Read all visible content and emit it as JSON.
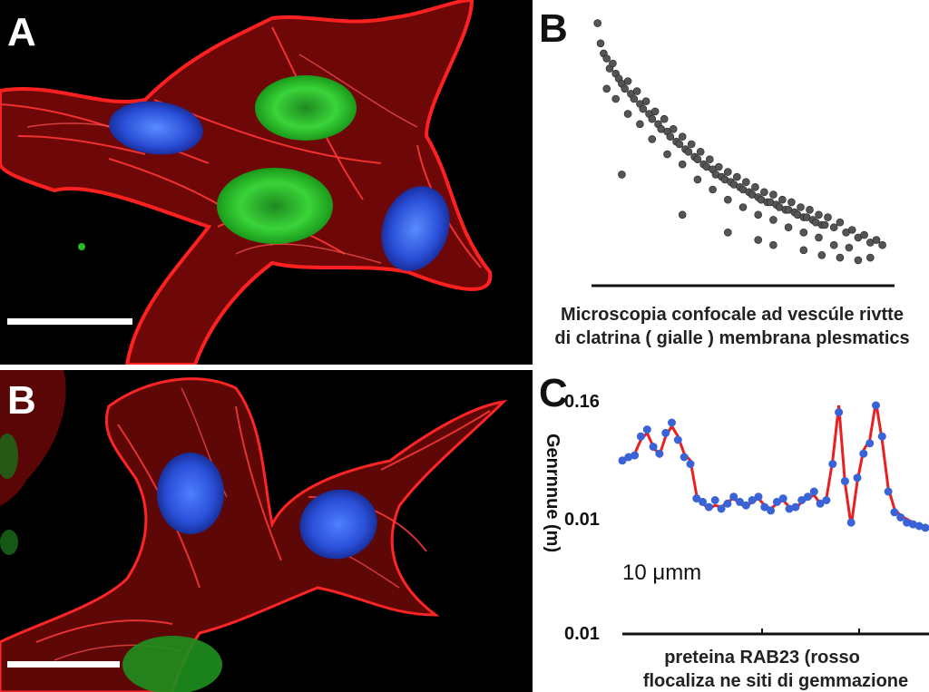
{
  "figure": {
    "panel_a": {
      "letter": "A"
    },
    "panel_b_micro": {
      "letter": "B"
    },
    "panel_b_scatter": {
      "letter": "B",
      "caption_line1": "Microscopia confocale ad vescúle rivtte",
      "caption_line2": "di clatrina ( gialle )  membrana plesmatics"
    },
    "panel_c": {
      "letter": "C",
      "ylabel": "Genrnnue (m)",
      "ytick_top": "0.16",
      "ytick_mid": "0.01",
      "ytick_bottom": "0.01",
      "note": "10 μmm",
      "caption_line1": "preteina RAB23 (rosso",
      "caption_line2": "flocaliza ne siti di gemmazione"
    }
  },
  "colors": {
    "actin": "#e01010",
    "nucleus": "#2a4fd8",
    "gfp": "#20c020",
    "scatter": "#555555",
    "line": "#e82020",
    "dots": "#3a63d8"
  },
  "chart_data": [
    {
      "type": "scatter",
      "panel": "B",
      "title": "",
      "xlabel": "",
      "ylabel": "",
      "trend": "decreasing",
      "points": [
        [
          0.02,
          0.98
        ],
        [
          0.03,
          0.9
        ],
        [
          0.04,
          0.86
        ],
        [
          0.05,
          0.84
        ],
        [
          0.06,
          0.8
        ],
        [
          0.07,
          0.82
        ],
        [
          0.08,
          0.78
        ],
        [
          0.09,
          0.76
        ],
        [
          0.1,
          0.74
        ],
        [
          0.11,
          0.72
        ],
        [
          0.12,
          0.75
        ],
        [
          0.13,
          0.7
        ],
        [
          0.14,
          0.68
        ],
        [
          0.15,
          0.71
        ],
        [
          0.16,
          0.66
        ],
        [
          0.17,
          0.64
        ],
        [
          0.18,
          0.67
        ],
        [
          0.19,
          0.62
        ],
        [
          0.2,
          0.6
        ],
        [
          0.21,
          0.63
        ],
        [
          0.22,
          0.58
        ],
        [
          0.23,
          0.56
        ],
        [
          0.24,
          0.6
        ],
        [
          0.25,
          0.55
        ],
        [
          0.26,
          0.53
        ],
        [
          0.27,
          0.56
        ],
        [
          0.28,
          0.51
        ],
        [
          0.29,
          0.5
        ],
        [
          0.3,
          0.53
        ],
        [
          0.31,
          0.48
        ],
        [
          0.32,
          0.47
        ],
        [
          0.33,
          0.5
        ],
        [
          0.34,
          0.45
        ],
        [
          0.35,
          0.44
        ],
        [
          0.36,
          0.47
        ],
        [
          0.37,
          0.42
        ],
        [
          0.38,
          0.41
        ],
        [
          0.39,
          0.44
        ],
        [
          0.4,
          0.4
        ],
        [
          0.41,
          0.38
        ],
        [
          0.42,
          0.41
        ],
        [
          0.43,
          0.37
        ],
        [
          0.44,
          0.36
        ],
        [
          0.45,
          0.39
        ],
        [
          0.46,
          0.35
        ],
        [
          0.47,
          0.34
        ],
        [
          0.48,
          0.37
        ],
        [
          0.49,
          0.33
        ],
        [
          0.5,
          0.32
        ],
        [
          0.51,
          0.35
        ],
        [
          0.52,
          0.31
        ],
        [
          0.53,
          0.3
        ],
        [
          0.54,
          0.33
        ],
        [
          0.55,
          0.29
        ],
        [
          0.56,
          0.28
        ],
        [
          0.57,
          0.31
        ],
        [
          0.58,
          0.27
        ],
        [
          0.59,
          0.27
        ],
        [
          0.6,
          0.3
        ],
        [
          0.61,
          0.26
        ],
        [
          0.62,
          0.25
        ],
        [
          0.63,
          0.28
        ],
        [
          0.64,
          0.24
        ],
        [
          0.65,
          0.24
        ],
        [
          0.66,
          0.27
        ],
        [
          0.67,
          0.23
        ],
        [
          0.68,
          0.22
        ],
        [
          0.69,
          0.25
        ],
        [
          0.7,
          0.21
        ],
        [
          0.71,
          0.21
        ],
        [
          0.72,
          0.24
        ],
        [
          0.73,
          0.2
        ],
        [
          0.74,
          0.19
        ],
        [
          0.75,
          0.22
        ],
        [
          0.76,
          0.18
        ],
        [
          0.77,
          0.18
        ],
        [
          0.78,
          0.21
        ],
        [
          0.8,
          0.17
        ],
        [
          0.82,
          0.19
        ],
        [
          0.84,
          0.15
        ],
        [
          0.86,
          0.16
        ],
        [
          0.88,
          0.13
        ],
        [
          0.9,
          0.14
        ],
        [
          0.92,
          0.11
        ],
        [
          0.94,
          0.12
        ],
        [
          0.96,
          0.1
        ],
        [
          0.05,
          0.72
        ],
        [
          0.08,
          0.68
        ],
        [
          0.12,
          0.62
        ],
        [
          0.16,
          0.58
        ],
        [
          0.2,
          0.52
        ],
        [
          0.25,
          0.46
        ],
        [
          0.3,
          0.42
        ],
        [
          0.35,
          0.36
        ],
        [
          0.4,
          0.32
        ],
        [
          0.45,
          0.28
        ],
        [
          0.5,
          0.25
        ],
        [
          0.55,
          0.22
        ],
        [
          0.6,
          0.2
        ],
        [
          0.65,
          0.17
        ],
        [
          0.7,
          0.15
        ],
        [
          0.75,
          0.13
        ],
        [
          0.8,
          0.1
        ],
        [
          0.85,
          0.09
        ],
        [
          0.1,
          0.38
        ],
        [
          0.3,
          0.22
        ],
        [
          0.45,
          0.15
        ],
        [
          0.55,
          0.12
        ],
        [
          0.6,
          0.1
        ],
        [
          0.7,
          0.08
        ],
        [
          0.76,
          0.06
        ],
        [
          0.82,
          0.05
        ],
        [
          0.88,
          0.04
        ],
        [
          0.92,
          0.05
        ]
      ]
    },
    {
      "type": "line",
      "panel": "C",
      "yticks": [
        "0.16",
        "0.01",
        "0.01"
      ],
      "series": [
        {
          "kind": "line",
          "values": [
            0.58,
            0.6,
            0.62,
            0.7,
            0.74,
            0.66,
            0.61,
            0.72,
            0.78,
            0.72,
            0.62,
            0.58,
            0.38,
            0.33,
            0.3,
            0.32,
            0.31,
            0.34,
            0.36,
            0.33,
            0.31,
            0.34,
            0.36,
            0.32,
            0.3,
            0.33,
            0.35,
            0.31,
            0.3,
            0.34,
            0.36,
            0.38,
            0.33,
            0.36,
            0.58,
            0.9,
            0.45,
            0.2,
            0.46,
            0.64,
            0.7,
            0.92,
            0.7,
            0.42,
            0.3,
            0.26,
            0.24,
            0.22,
            0.2,
            0.2
          ]
        },
        {
          "kind": "points",
          "values": [
            0.58,
            0.6,
            0.61,
            0.72,
            0.76,
            0.66,
            0.62,
            0.74,
            0.8,
            0.7,
            0.6,
            0.56,
            0.36,
            0.34,
            0.31,
            0.35,
            0.3,
            0.33,
            0.37,
            0.34,
            0.32,
            0.35,
            0.37,
            0.31,
            0.29,
            0.34,
            0.36,
            0.3,
            0.31,
            0.35,
            0.37,
            0.4,
            0.33,
            0.35,
            0.56,
            0.86,
            0.46,
            0.22,
            0.48,
            0.62,
            0.68,
            0.9,
            0.72,
            0.4,
            0.28,
            0.25,
            0.22,
            0.21,
            0.2,
            0.19
          ]
        }
      ]
    }
  ]
}
